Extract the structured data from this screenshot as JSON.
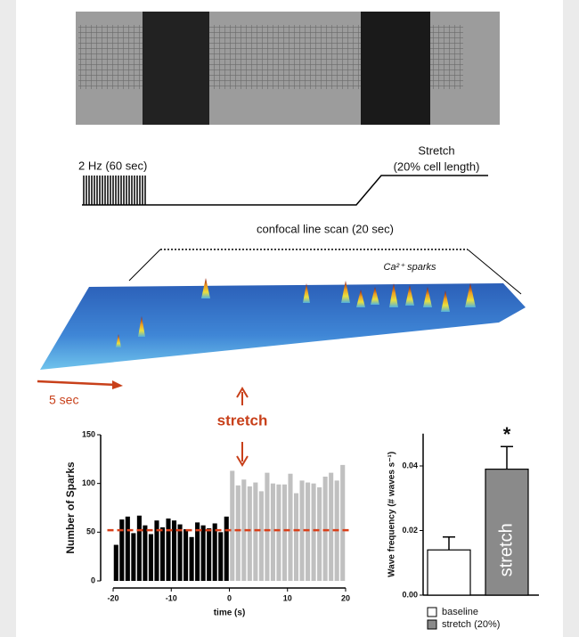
{
  "protocol": {
    "pacing_label": "2 Hz (60 sec)",
    "stretch_label": "Stretch",
    "stretch_sublabel": "(20% cell length)"
  },
  "linescan": {
    "title": "confocal line scan (20 sec)",
    "annotation": "Ca²⁺ sparks",
    "scale_label": "5 sec"
  },
  "stretch_marker": "stretch",
  "chart_data": [
    {
      "type": "bar",
      "xlabel": "time (s)",
      "ylabel": "Number  of Sparks",
      "x": [
        -19.5,
        -18.5,
        -17.5,
        -16.5,
        -15.5,
        -14.5,
        -13.5,
        -12.5,
        -11.5,
        -10.5,
        -9.5,
        -8.5,
        -7.5,
        -6.5,
        -5.5,
        -4.5,
        -3.5,
        -2.5,
        -1.5,
        -0.5,
        0.5,
        1.5,
        2.5,
        3.5,
        4.5,
        5.5,
        6.5,
        7.5,
        8.5,
        9.5,
        10.5,
        11.5,
        12.5,
        13.5,
        14.5,
        15.5,
        16.5,
        17.5,
        18.5,
        19.5
      ],
      "series": [
        {
          "color": "#000000",
          "values": [
            37,
            63,
            66,
            49,
            67,
            57,
            48,
            62,
            55,
            64,
            62,
            58,
            53,
            45,
            60,
            57,
            54,
            59,
            50,
            66,
            null,
            null,
            null,
            null,
            null,
            null,
            null,
            null,
            null,
            null,
            null,
            null,
            null,
            null,
            null,
            null,
            null,
            null,
            null,
            null
          ]
        },
        {
          "color": "#c0c0c0",
          "values": [
            null,
            null,
            null,
            null,
            null,
            null,
            null,
            null,
            null,
            null,
            null,
            null,
            null,
            null,
            null,
            null,
            null,
            null,
            null,
            null,
            113,
            98,
            104,
            97,
            101,
            92,
            111,
            100,
            99,
            99,
            110,
            90,
            103,
            101,
            100,
            96,
            107,
            111,
            103,
            119
          ]
        }
      ],
      "reference_line": {
        "value": 52,
        "color": "#d9401a"
      },
      "xlim": [
        -21,
        21
      ],
      "xticks": [
        -20,
        -10,
        0,
        10,
        20
      ],
      "ylim": [
        0,
        150
      ],
      "yticks": [
        0,
        50,
        100,
        150
      ]
    },
    {
      "type": "errorbar",
      "ylabel": "Wave frequency (# waves s⁻¹)",
      "bar_label": "stretch",
      "annotation": "*",
      "series": [
        {
          "name": "baseline",
          "color": "#ffffff",
          "values": [
            0.014
          ],
          "errors": [
            0.004
          ]
        },
        {
          "name": "stretch (20%)",
          "color": "#8a8a8a",
          "values": [
            0.039
          ],
          "errors": [
            0.007
          ]
        }
      ],
      "ylim": [
        0,
        0.05
      ],
      "yticks": [
        {
          "value": 0,
          "label": "0.00"
        },
        {
          "value": 0.02,
          "label": "0.02"
        },
        {
          "value": 0.04,
          "label": "0.04"
        }
      ]
    }
  ]
}
